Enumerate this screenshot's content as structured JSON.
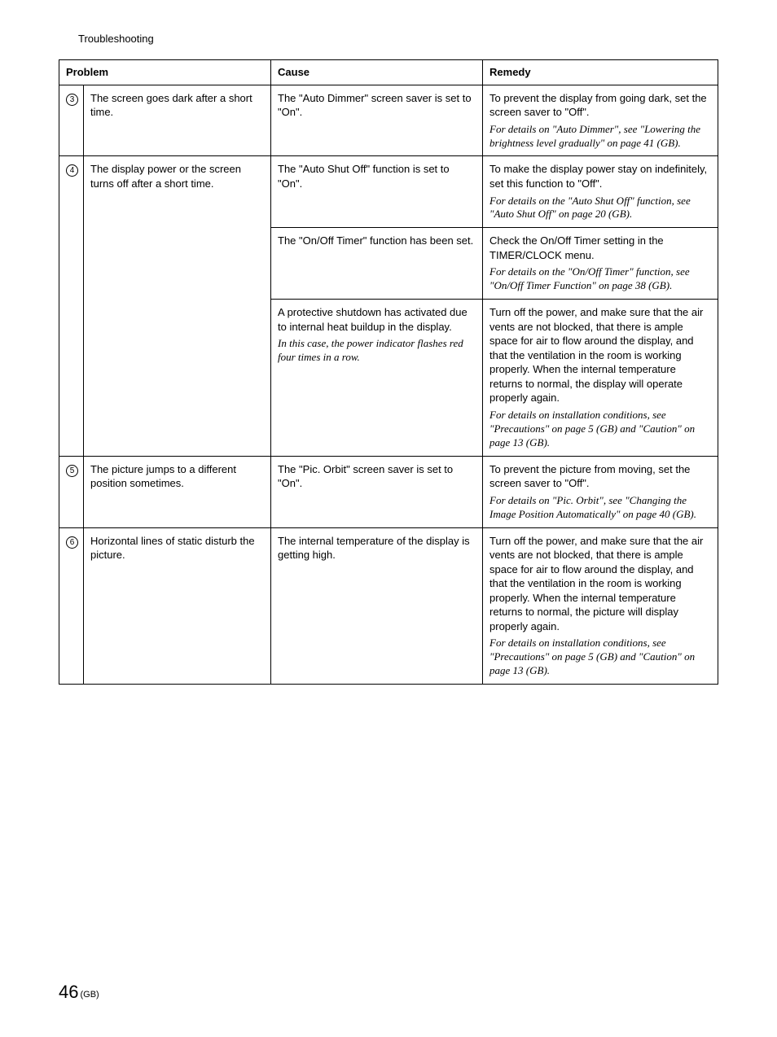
{
  "header": {
    "section": "Troubleshooting"
  },
  "table": {
    "colHeaders": {
      "problem": "Problem",
      "cause": "Cause",
      "remedy": "Remedy"
    },
    "rows": [
      {
        "num": "3",
        "problem": "The screen goes dark after a short time.",
        "cause": "The \"Auto Dimmer\" screen saver is set to \"On\".",
        "remedy": "To prevent the display from going dark, set the screen saver to \"Off\".",
        "remedyNote": "For details on \"Auto Dimmer\", see \"Lowering the brightness level gradually\" on page 41 (GB)."
      },
      {
        "num": "4",
        "problem": "The display power or the screen turns off after a short time.",
        "cause": "The \"Auto Shut Off\" function is set to \"On\".",
        "remedy": "To make the display power stay on indefinitely, set this function to \"Off\".",
        "remedyNote": "For details on the \"Auto Shut Off\" function, see \"Auto Shut Off\" on page 20 (GB)."
      },
      {
        "cause": "The \"On/Off Timer\" function has been set.",
        "remedy": "Check the On/Off Timer setting in the TIMER/CLOCK menu.",
        "remedyNote": "For details on the \"On/Off Timer\" function, see \"On/Off Timer Function\" on page 38 (GB)."
      },
      {
        "cause": "A protective shutdown has activated due to internal heat buildup in the display.",
        "causeNote": "In this case, the power indicator flashes red four times in a row.",
        "remedy": "Turn off the power, and make sure that the air vents are not blocked, that there is ample space for air to flow around the display, and that the ventilation in the room is working properly. When the internal temperature returns to normal, the display will operate properly again.",
        "remedyNote": "For details on installation conditions, see \"Precautions\" on page 5 (GB) and \"Caution\" on page 13 (GB)."
      },
      {
        "num": "5",
        "problem": "The picture jumps to a different position sometimes.",
        "cause": "The \"Pic. Orbit\" screen saver is set to \"On\".",
        "remedy": "To prevent the picture from moving, set the screen saver to \"Off\".",
        "remedyNote": "For details on \"Pic. Orbit\", see \"Changing the Image Position Automatically\" on page 40 (GB)."
      },
      {
        "num": "6",
        "problem": "Horizontal lines of static disturb the picture.",
        "cause": "The internal temperature of the display is getting high.",
        "remedy": "Turn off the power, and make sure that the air vents are not blocked, that there is ample space for air to flow around the display, and that the ventilation in the room is working properly. When the internal temperature returns to normal, the picture will display properly again.",
        "remedyNote": "For details on installation conditions, see \"Precautions\" on page 5 (GB) and \"Caution\" on page 13 (GB)."
      }
    ]
  },
  "footer": {
    "pageNumber": "46",
    "locale": "(GB)"
  }
}
